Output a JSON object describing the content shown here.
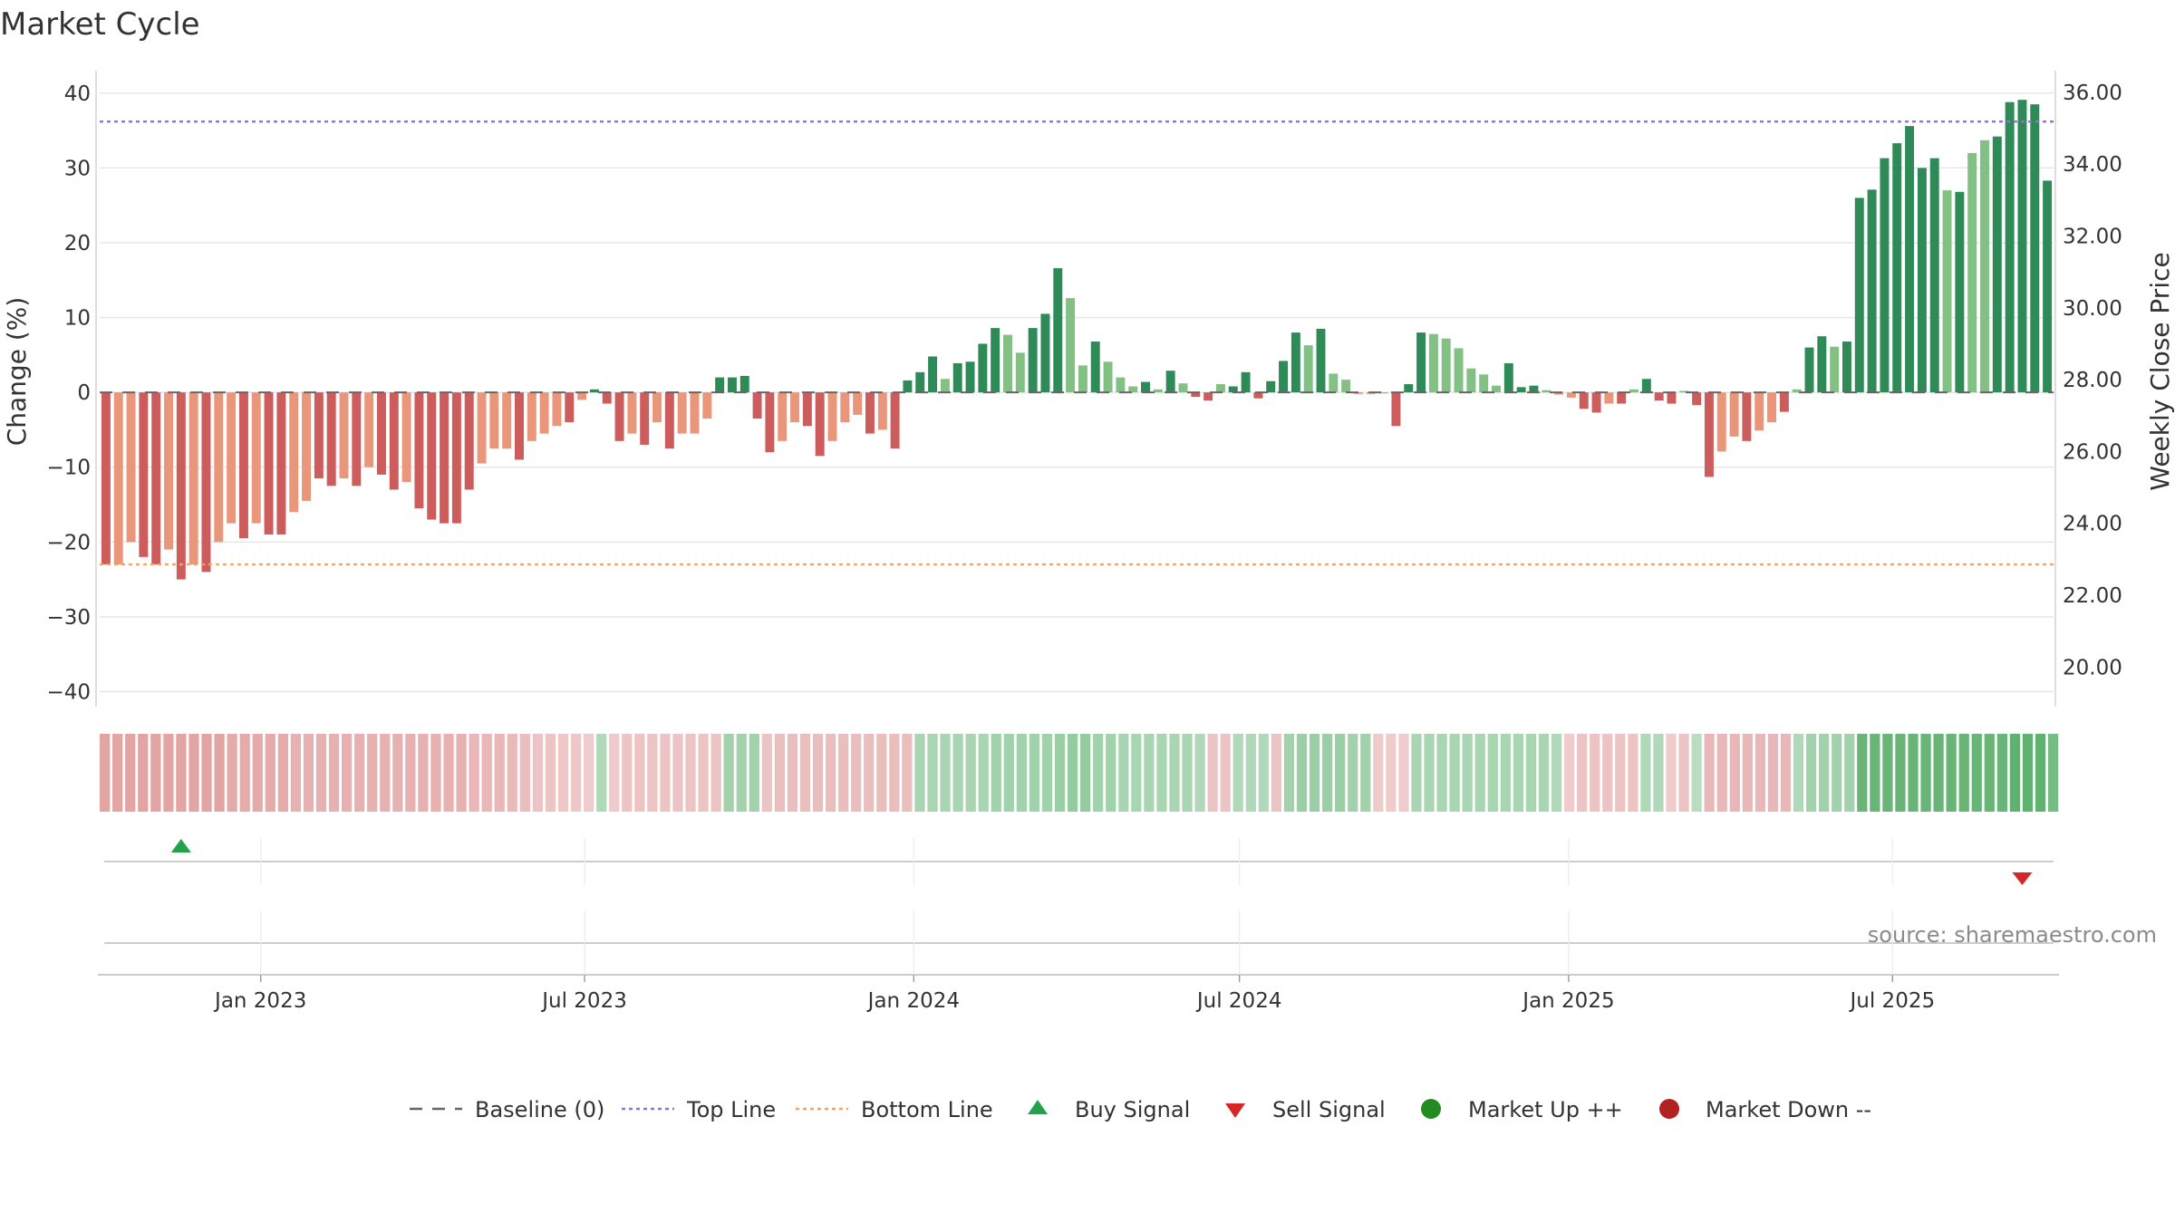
{
  "chart_data": {
    "type": "bar",
    "title": "Market Cycle",
    "ylabel_left": "Change (%)",
    "ylabel_right": "Weekly Close Price",
    "y_left_ticks": [
      40,
      30,
      20,
      10,
      0,
      -10,
      -20,
      -30,
      -40
    ],
    "y_left_tick_labels": [
      "40",
      "30",
      "20",
      "10",
      "0",
      "−10",
      "−20",
      "−30",
      "−40"
    ],
    "y_right_ticks": [
      36.0,
      34.0,
      32.0,
      30.0,
      28.0,
      26.0,
      24.0,
      22.0,
      20.0
    ],
    "y_right_tick_labels": [
      "36.00",
      "34.00",
      "32.00",
      "30.00",
      "28.00",
      "26.00",
      "24.00",
      "22.00",
      "20.00"
    ],
    "ylim_left": [
      -42,
      43
    ],
    "ylim_right": [
      18.9,
      36.6
    ],
    "x_start": "2022-10-03",
    "x_end": "2025-09-29",
    "x_ticks": [
      {
        "date": "2023-01-01",
        "label": "Jan 2023"
      },
      {
        "date": "2023-07-01",
        "label": "Jul 2023"
      },
      {
        "date": "2024-01-01",
        "label": "Jan 2024"
      },
      {
        "date": "2024-07-01",
        "label": "Jul 2024"
      },
      {
        "date": "2025-01-01",
        "label": "Jan 2025"
      },
      {
        "date": "2025-07-01",
        "label": "Jul 2025"
      }
    ],
    "top_line": 36.2,
    "bottom_line": -23.0,
    "baseline": 0,
    "bar_values": [
      -23,
      -23,
      -20,
      -22,
      -23,
      -21,
      -25,
      -23,
      -24,
      -20,
      -17.5,
      -19.5,
      -17.5,
      -19,
      -19,
      -16,
      -14.5,
      -11.5,
      -12.5,
      -11.5,
      -12.5,
      -10,
      -11,
      -13,
      -12,
      -15.5,
      -17,
      -17.5,
      -17.5,
      -13,
      -9.5,
      -7.5,
      -7.5,
      -9,
      -6.5,
      -5.5,
      -4.5,
      -4,
      -1,
      0.4,
      -1.5,
      -6.5,
      -5.5,
      -7,
      -4,
      -7.5,
      -5.5,
      -5.5,
      -3.5,
      2,
      2,
      2.2,
      -3.5,
      -8,
      -6.5,
      -4,
      -4.5,
      -8.5,
      -6.5,
      -4,
      -3,
      -5.5,
      -5,
      -7.5,
      1.6,
      2.7,
      4.8,
      1.8,
      3.9,
      4.1,
      6.5,
      8.6,
      7.7,
      5.3,
      8.6,
      10.5,
      16.6,
      12.6,
      3.6,
      6.8,
      4.1,
      2,
      0.8,
      1.4,
      0.4,
      2.9,
      1.2,
      -0.6,
      -1.1,
      1.1,
      0.8,
      2.7,
      -0.8,
      1.5,
      4.2,
      8,
      6.3,
      8.5,
      2.5,
      1.7,
      -0.2,
      -0.2,
      0,
      -4.5,
      1.1,
      8,
      7.8,
      7.2,
      5.9,
      3.2,
      2.4,
      0.9,
      3.9,
      0.7,
      0.9,
      0.3,
      -0.3,
      -0.7,
      -2.2,
      -2.7,
      -1.5,
      -1.5,
      0.4,
      1.8,
      -1.1,
      -1.5,
      0.2,
      -1.7,
      -11.3,
      -7.9,
      -5.9,
      -6.5,
      -5.1,
      -4,
      -2.6,
      0.4,
      6,
      7.5,
      6.1,
      6.8,
      26,
      27.1,
      31.3,
      33.3,
      35.6,
      30,
      31.3,
      27,
      26.8,
      32,
      33.7,
      34.2,
      38.8,
      39.1,
      38.5,
      28.3
    ],
    "bar_shades": [
      1,
      2,
      2,
      1,
      1,
      2,
      1,
      2,
      1,
      2,
      2,
      1,
      2,
      1,
      1,
      2,
      2,
      1,
      1,
      2,
      1,
      2,
      1,
      1,
      2,
      1,
      1,
      1,
      1,
      1,
      2,
      2,
      2,
      1,
      2,
      2,
      2,
      1,
      2,
      1,
      1,
      1,
      2,
      1,
      2,
      1,
      2,
      2,
      2,
      1,
      1,
      1,
      1,
      1,
      2,
      2,
      1,
      1,
      2,
      2,
      2,
      1,
      2,
      1,
      1,
      1,
      1,
      2,
      1,
      1,
      1,
      1,
      2,
      2,
      1,
      1,
      1,
      2,
      2,
      1,
      2,
      2,
      2,
      1,
      2,
      1,
      2,
      1,
      1,
      2,
      1,
      1,
      1,
      1,
      1,
      1,
      2,
      1,
      2,
      2,
      2,
      2,
      2,
      1,
      1,
      1,
      2,
      2,
      2,
      2,
      2,
      2,
      1,
      1,
      1,
      2,
      2,
      2,
      1,
      1,
      2,
      1,
      2,
      1,
      1,
      1,
      2,
      1,
      1,
      2,
      2,
      1,
      2,
      2,
      1,
      2,
      1,
      1,
      2,
      1,
      1,
      1,
      1,
      1,
      1,
      1,
      1,
      2,
      1,
      2,
      2,
      1,
      1,
      1,
      1,
      1,
      2,
      2
    ],
    "regime_strip": [
      -0.45,
      -0.45,
      -0.45,
      -0.45,
      -0.45,
      -0.45,
      -0.45,
      -0.45,
      -0.45,
      -0.45,
      -0.4,
      -0.4,
      -0.4,
      -0.4,
      -0.4,
      -0.35,
      -0.35,
      -0.35,
      -0.35,
      -0.35,
      -0.35,
      -0.35,
      -0.35,
      -0.35,
      -0.35,
      -0.35,
      -0.35,
      -0.35,
      -0.35,
      -0.3,
      -0.3,
      -0.3,
      -0.28,
      -0.25,
      -0.2,
      -0.2,
      -0.18,
      -0.18,
      -0.15,
      0.2,
      -0.15,
      -0.2,
      -0.2,
      -0.2,
      -0.2,
      -0.2,
      -0.2,
      -0.2,
      -0.2,
      0.3,
      0.3,
      0.3,
      -0.2,
      -0.25,
      -0.25,
      -0.25,
      -0.25,
      -0.25,
      -0.25,
      -0.25,
      -0.25,
      -0.25,
      -0.25,
      -0.25,
      0.25,
      0.25,
      0.25,
      0.25,
      0.25,
      0.25,
      0.3,
      0.3,
      0.3,
      0.3,
      0.3,
      0.35,
      0.4,
      0.4,
      0.3,
      0.3,
      0.25,
      0.25,
      0.25,
      0.25,
      0.25,
      0.25,
      0.2,
      -0.2,
      -0.2,
      0.2,
      0.2,
      0.2,
      -0.2,
      0.3,
      0.35,
      0.35,
      0.35,
      0.35,
      0.3,
      0.3,
      -0.15,
      -0.15,
      -0.15,
      0.25,
      0.25,
      0.25,
      0.25,
      0.25,
      0.25,
      0.25,
      0.25,
      0.25,
      0.25,
      0.25,
      0.2,
      -0.15,
      -0.2,
      -0.2,
      -0.2,
      -0.2,
      -0.2,
      0.2,
      0.2,
      -0.15,
      -0.2,
      0.15,
      -0.3,
      -0.3,
      -0.3,
      -0.3,
      -0.3,
      -0.3,
      -0.3,
      0.2,
      0.3,
      0.3,
      0.3,
      0.3,
      0.7,
      0.7,
      0.7,
      0.7,
      0.7,
      0.7,
      0.7,
      0.7,
      0.7,
      0.7,
      0.7,
      0.7,
      0.75,
      0.75,
      0.75,
      0.6
    ],
    "signals": [
      {
        "type": "Buy Signal",
        "index": 6
      },
      {
        "type": "Sell Signal",
        "index": 153
      }
    ],
    "legend": [
      "Baseline (0)",
      "Top Line",
      "Bottom Line",
      "Buy Signal",
      "Sell Signal",
      "Market Up ++",
      "Market Down --"
    ],
    "legend_placement": "bottom-center"
  },
  "source_note": "source: sharemaestro.com",
  "colors": {
    "bar_pos_dark": "#2e8b57",
    "bar_pos_light": "#82c084",
    "bar_neg_dark": "#cd5c5c",
    "bar_neg_light": "#e9967a",
    "top_line": "#9370db",
    "bottom_line": "#f4a460",
    "buy": "#22a24a",
    "sell": "#d62728",
    "market_up": "#228b22",
    "market_down": "#b22222",
    "baseline": "#666666"
  }
}
